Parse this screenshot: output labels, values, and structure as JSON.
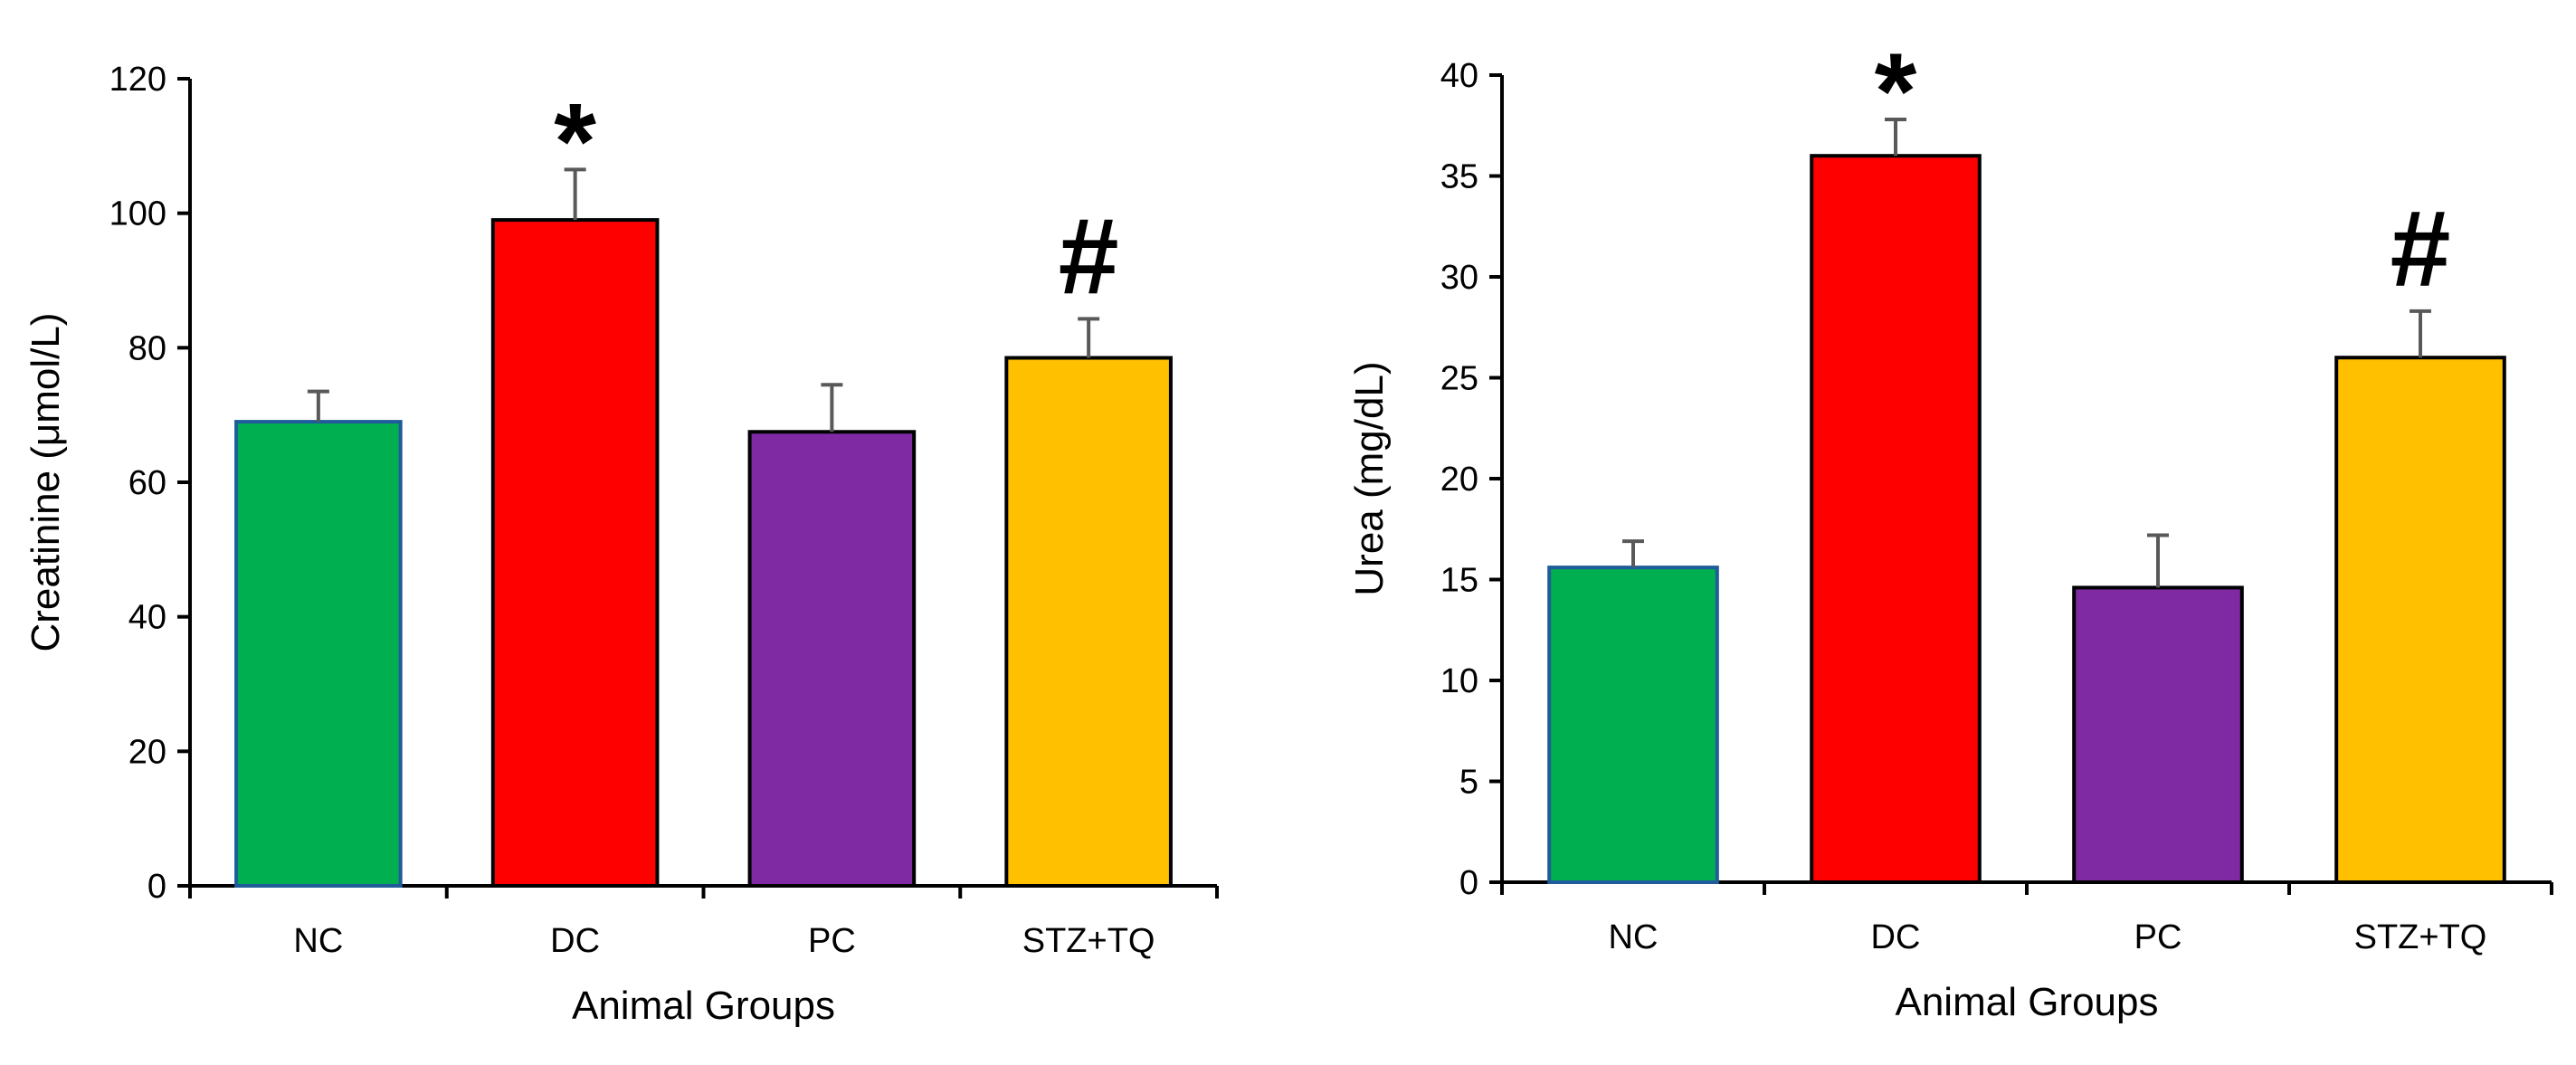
{
  "chart_data": [
    {
      "type": "bar",
      "title": "",
      "xlabel": "Animal Groups",
      "ylabel": "Creatinine (μmol/L)",
      "ylim": [
        0,
        120
      ],
      "yticks": [
        0,
        20,
        40,
        60,
        80,
        100,
        120
      ],
      "categories": [
        "NC",
        "DC",
        "PC",
        "STZ+TQ"
      ],
      "values": [
        69,
        99,
        67.5,
        78.5
      ],
      "errors": [
        4.5,
        7.5,
        7,
        5.8
      ],
      "colors": [
        "#00B050",
        "#FF0000",
        "#7F2AA2",
        "#FFC000"
      ],
      "annotations": [
        {
          "category": "DC",
          "text": "*"
        },
        {
          "category": "STZ+TQ",
          "text": "#"
        }
      ],
      "grid": false
    },
    {
      "type": "bar",
      "title": "",
      "xlabel": "Animal Groups",
      "ylabel": "Urea (mg/dL)",
      "ylim": [
        0,
        40
      ],
      "yticks": [
        0,
        5,
        10,
        15,
        20,
        25,
        30,
        35,
        40
      ],
      "categories": [
        "NC",
        "DC",
        "PC",
        "STZ+TQ"
      ],
      "values": [
        15.6,
        36,
        14.6,
        26
      ],
      "errors": [
        1.3,
        1.8,
        2.6,
        2.3
      ],
      "colors": [
        "#00B050",
        "#FF0000",
        "#7F2AA2",
        "#FFC000"
      ],
      "annotations": [
        {
          "category": "DC",
          "text": "*"
        },
        {
          "category": "STZ+TQ",
          "text": "#"
        }
      ],
      "grid": false
    }
  ]
}
